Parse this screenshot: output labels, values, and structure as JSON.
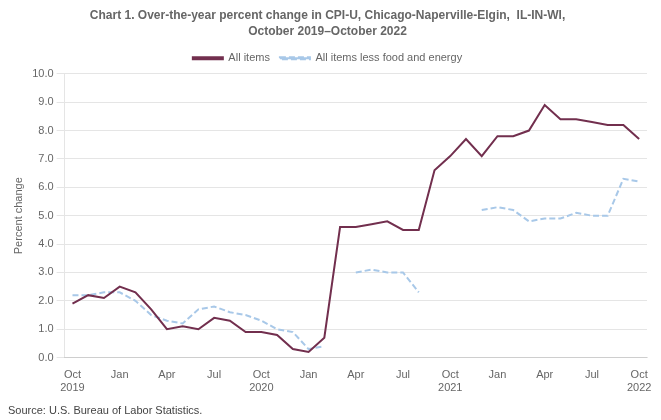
{
  "chart_data": {
    "type": "line",
    "title": "Chart 1. Over-the-year percent change in CPI-U, Chicago-Naperville-Elgin,  IL-IN-WI,",
    "subtitle": "October 2019–October 2022",
    "ylabel": "Percent change",
    "annotations": [
      "Source: U.S. Bureau of Labor Statistics."
    ],
    "categories": [
      "Oct\n2019",
      null,
      null,
      "Jan",
      null,
      null,
      "Apr",
      null,
      null,
      "Jul",
      null,
      null,
      "Oct\n2020",
      null,
      null,
      "Jan",
      null,
      null,
      "Apr",
      null,
      null,
      "Jul",
      null,
      null,
      "Oct\n2021",
      null,
      null,
      "Jan",
      null,
      null,
      "Apr",
      null,
      null,
      "Jul",
      null,
      null,
      "Oct\n2022"
    ],
    "series": [
      {
        "name": "All items",
        "color": "#722F4E",
        "line_style": "solid",
        "values": [
          1.9,
          2.2,
          2.1,
          2.5,
          2.3,
          1.7,
          1.0,
          1.1,
          1.0,
          1.4,
          1.3,
          0.9,
          0.9,
          0.8,
          0.3,
          0.2,
          0.7,
          4.6,
          4.6,
          4.7,
          4.8,
          4.5,
          4.5,
          6.6,
          7.1,
          7.7,
          7.1,
          7.8,
          7.8,
          8.0,
          8.9,
          8.4,
          8.4,
          8.3,
          8.2,
          8.2,
          7.7
        ]
      },
      {
        "name": "All items less food and energy",
        "color": "#A8C8E8",
        "line_style": "dashed",
        "values": [
          2.2,
          2.2,
          2.3,
          2.3,
          2.0,
          1.5,
          1.3,
          1.2,
          1.7,
          1.8,
          1.6,
          1.5,
          1.3,
          1.0,
          0.9,
          0.3,
          0.4,
          null,
          3.0,
          3.1,
          3.0,
          3.0,
          2.3,
          null,
          null,
          null,
          5.2,
          5.3,
          5.2,
          4.8,
          4.9,
          4.9,
          5.1,
          5.0,
          5.0,
          6.3,
          6.2
        ]
      }
    ],
    "ylim": [
      0.0,
      10.0
    ],
    "yticks": [
      {
        "value": 0,
        "label": "0.0"
      },
      {
        "value": 1,
        "label": "1.0"
      },
      {
        "value": 2,
        "label": "2.0"
      },
      {
        "value": 3,
        "label": "3.0"
      },
      {
        "value": 4,
        "label": "4.0"
      },
      {
        "value": 5,
        "label": "5.0"
      },
      {
        "value": 6,
        "label": "6.0"
      },
      {
        "value": 7,
        "label": "7.0"
      },
      {
        "value": 8,
        "label": "8.0"
      },
      {
        "value": 9,
        "label": "9.0"
      },
      {
        "value": 10,
        "label": "10.0"
      }
    ],
    "grid": true,
    "legend": "top"
  }
}
